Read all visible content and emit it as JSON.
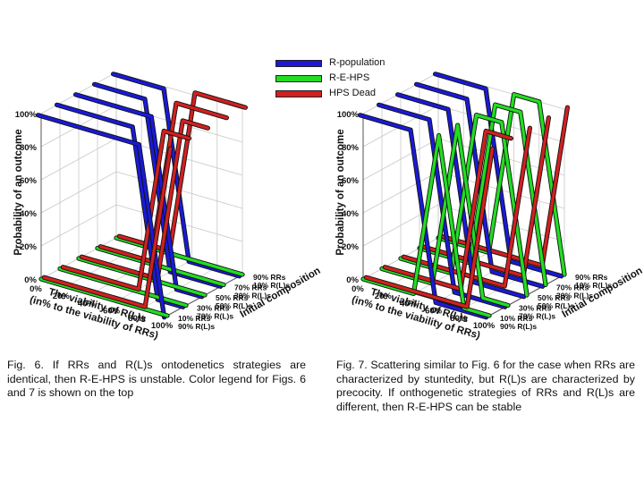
{
  "legend": [
    {
      "name": "R-population",
      "color": "#1a1ad6"
    },
    {
      "name": "R-E-HPS",
      "color": "#22dd22"
    },
    {
      "name": "HPS Dead",
      "color": "#d22020"
    }
  ],
  "chart_data": [
    {
      "type": "line",
      "projection": "3d-waterfall",
      "zlabel": "Probability of an outcome",
      "xlabel": "The viability of R(L)s\n(in% to the viability of RRs)",
      "ylabel": "Initial composition",
      "z_ticks": [
        "0%",
        "20%",
        "40%",
        "60%",
        "80%",
        "100%"
      ],
      "x_ticks": [
        "0%",
        "20%",
        "40%",
        "60%",
        "80%",
        "100%"
      ],
      "x": [
        0,
        20,
        40,
        60,
        80,
        100
      ],
      "compositions": [
        {
          "rrs": "10% RRs",
          "rls": "90% R(L)s"
        },
        {
          "rrs": "30% RRs",
          "rls": "70% R(L)s"
        },
        {
          "rrs": "50% RRs",
          "rls": "50% R(L)s"
        },
        {
          "rrs": "70% RRs",
          "rls": "30% R(L)s"
        },
        {
          "rrs": "90% RRs",
          "rls": "10% R(L)s"
        }
      ],
      "series": [
        {
          "name": "R-population",
          "values": [
            [
              100,
              100,
              100,
              100,
              100,
              0
            ],
            [
              100,
              100,
              100,
              100,
              0,
              0
            ],
            [
              100,
              100,
              100,
              100,
              0,
              0
            ],
            [
              100,
              100,
              100,
              0,
              0,
              0
            ],
            [
              100,
              100,
              100,
              0,
              0,
              0
            ]
          ]
        },
        {
          "name": "R-E-HPS",
          "values": [
            [
              0,
              0,
              0,
              0,
              0,
              0
            ],
            [
              0,
              0,
              0,
              0,
              0,
              0
            ],
            [
              0,
              0,
              0,
              0,
              0,
              0
            ],
            [
              0,
              0,
              0,
              0,
              0,
              0
            ],
            [
              0,
              0,
              0,
              0,
              0,
              0
            ]
          ]
        },
        {
          "name": "HPS Dead",
          "values": [
            [
              0,
              0,
              0,
              0,
              0,
              100
            ],
            [
              0,
              0,
              0,
              0,
              100,
              100
            ],
            [
              0,
              0,
              0,
              0,
              100,
              100
            ],
            [
              0,
              0,
              0,
              100,
              100,
              100
            ],
            [
              0,
              0,
              0,
              100,
              100,
              100
            ]
          ]
        }
      ]
    },
    {
      "type": "line",
      "projection": "3d-waterfall",
      "zlabel": "Probability of an outcome",
      "xlabel": "The viability of R(L)s\n(in% to the viability of RRs)",
      "ylabel": "Initial composition",
      "z_ticks": [
        "0%",
        "20%",
        "40%",
        "60%",
        "80%",
        "100%"
      ],
      "x_ticks": [
        "0%",
        "20%",
        "40%",
        "60%",
        "80%",
        "100%"
      ],
      "x": [
        0,
        20,
        40,
        60,
        80,
        100
      ],
      "compositions": [
        {
          "rrs": "10% RRs",
          "rls": "90% R(L)s"
        },
        {
          "rrs": "30% RRs",
          "rls": "70% R(L)s"
        },
        {
          "rrs": "50% RRs",
          "rls": "50% R(L)s"
        },
        {
          "rrs": "70% RRs",
          "rls": "30% R(L)s"
        },
        {
          "rrs": "90% RRs",
          "rls": "10% R(L)s"
        }
      ],
      "series": [
        {
          "name": "R-population",
          "values": [
            [
              100,
              100,
              100,
              0,
              0,
              0
            ],
            [
              100,
              100,
              100,
              0,
              0,
              0
            ],
            [
              100,
              100,
              100,
              0,
              0,
              0
            ],
            [
              100,
              100,
              100,
              0,
              0,
              0
            ],
            [
              100,
              100,
              100,
              0,
              0,
              0
            ]
          ]
        },
        {
          "name": "R-E-HPS",
          "values": [
            [
              0,
              0,
              0,
              100,
              0,
              0
            ],
            [
              0,
              0,
              0,
              100,
              0,
              0
            ],
            [
              0,
              0,
              0,
              100,
              100,
              0
            ],
            [
              0,
              0,
              0,
              100,
              100,
              0
            ],
            [
              0,
              0,
              0,
              100,
              100,
              0
            ]
          ]
        },
        {
          "name": "HPS Dead",
          "values": [
            [
              0,
              0,
              0,
              0,
              0,
              100
            ],
            [
              0,
              0,
              0,
              0,
              100,
              100
            ],
            [
              0,
              0,
              0,
              0,
              0,
              100
            ],
            [
              0,
              0,
              0,
              0,
              0,
              100
            ],
            [
              0,
              0,
              0,
              0,
              0,
              100
            ]
          ]
        }
      ]
    }
  ],
  "captions": {
    "fig6": "Fig. 6. If RRs and R(L)s ontodenetics strategies are identical, then R-E-HPS is unstable. Color legend for Figs. 6 and 7 is shown on the top",
    "fig7": "Fig. 7. Scattering similar to Fig. 6 for the case when RRs are characterized by stuntedity, but R(L)s are characterized by precocity. If onthogenetic strategies of RRs and R(L)s are different, then R-E-HPS can be stable"
  }
}
